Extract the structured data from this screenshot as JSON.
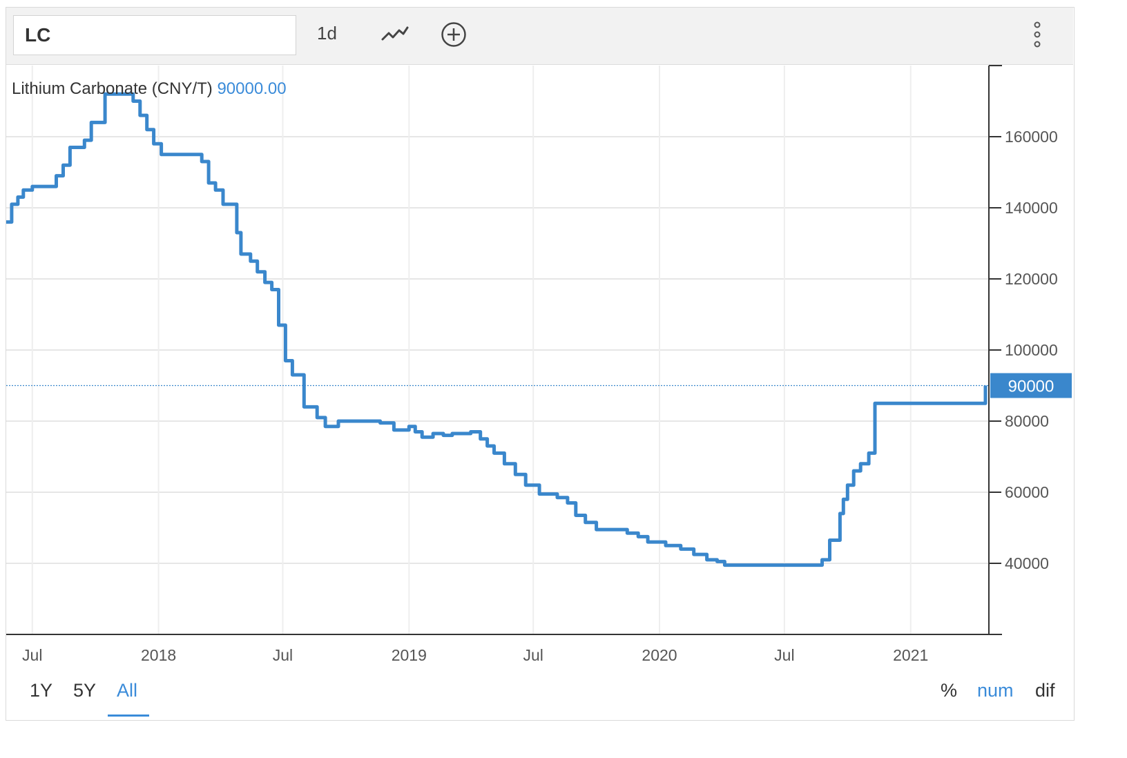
{
  "toolbar": {
    "symbol": "LC",
    "interval": "1d",
    "chart_type_icon": "line-chart-icon",
    "add_icon": "plus-circle-icon",
    "menu_icon": "vertical-dots-icon"
  },
  "legend": {
    "series_name": "Lithium Carbonate (CNY/T)",
    "last_value": "90000.00"
  },
  "price_tag": "90000",
  "range_buttons": [
    "1Y",
    "5Y",
    "All"
  ],
  "active_range": "All",
  "mode_buttons": [
    "%",
    "num",
    "dif"
  ],
  "active_mode": "num",
  "colors": {
    "line": "#3a87cc",
    "accent": "#3a8bd9",
    "grid": "#e6e6e6"
  },
  "chart_data": {
    "type": "line",
    "title": "",
    "xlabel": "",
    "ylabel": "",
    "y_ticks": [
      40000,
      60000,
      80000,
      100000,
      120000,
      140000,
      160000
    ],
    "ylim": [
      20000,
      180000
    ],
    "x_ticks": [
      {
        "date": "2017-07-01",
        "label": "Jul"
      },
      {
        "date": "2018-01-01",
        "label": "2018"
      },
      {
        "date": "2018-07-01",
        "label": "Jul"
      },
      {
        "date": "2019-01-01",
        "label": "2019"
      },
      {
        "date": "2019-07-01",
        "label": "Jul"
      },
      {
        "date": "2020-01-01",
        "label": "2020"
      },
      {
        "date": "2020-07-01",
        "label": "Jul"
      },
      {
        "date": "2021-01-01",
        "label": "2021"
      }
    ],
    "xlim": [
      "2017-05-24",
      "2021-04-25"
    ],
    "grid": true,
    "series": [
      {
        "name": "Lithium Carbonate (CNY/T)",
        "points": [
          [
            "2017-05-24",
            136000
          ],
          [
            "2017-06-01",
            141000
          ],
          [
            "2017-06-10",
            143000
          ],
          [
            "2017-06-18",
            145000
          ],
          [
            "2017-07-01",
            146000
          ],
          [
            "2017-08-05",
            149000
          ],
          [
            "2017-08-15",
            152000
          ],
          [
            "2017-08-25",
            157000
          ],
          [
            "2017-09-15",
            159000
          ],
          [
            "2017-09-25",
            164000
          ],
          [
            "2017-10-15",
            172000
          ],
          [
            "2017-11-25",
            170000
          ],
          [
            "2017-12-05",
            166000
          ],
          [
            "2017-12-15",
            162000
          ],
          [
            "2017-12-25",
            158000
          ],
          [
            "2018-01-05",
            155000
          ],
          [
            "2018-03-05",
            153000
          ],
          [
            "2018-03-15",
            147000
          ],
          [
            "2018-03-25",
            145000
          ],
          [
            "2018-04-05",
            141000
          ],
          [
            "2018-04-25",
            133000
          ],
          [
            "2018-05-01",
            127000
          ],
          [
            "2018-05-15",
            125000
          ],
          [
            "2018-05-25",
            122000
          ],
          [
            "2018-06-05",
            119000
          ],
          [
            "2018-06-15",
            117000
          ],
          [
            "2018-06-25",
            107000
          ],
          [
            "2018-07-05",
            97000
          ],
          [
            "2018-07-15",
            93000
          ],
          [
            "2018-08-01",
            84000
          ],
          [
            "2018-08-20",
            81000
          ],
          [
            "2018-09-01",
            78500
          ],
          [
            "2018-09-20",
            80000
          ],
          [
            "2018-11-20",
            79500
          ],
          [
            "2018-12-10",
            77500
          ],
          [
            "2019-01-01",
            78500
          ],
          [
            "2019-01-10",
            77000
          ],
          [
            "2019-01-20",
            75500
          ],
          [
            "2019-02-05",
            76500
          ],
          [
            "2019-02-20",
            76000
          ],
          [
            "2019-03-05",
            76500
          ],
          [
            "2019-04-01",
            77000
          ],
          [
            "2019-04-15",
            75000
          ],
          [
            "2019-04-25",
            73000
          ],
          [
            "2019-05-05",
            71000
          ],
          [
            "2019-05-20",
            68000
          ],
          [
            "2019-06-05",
            65000
          ],
          [
            "2019-06-20",
            62000
          ],
          [
            "2019-07-10",
            59500
          ],
          [
            "2019-08-05",
            58500
          ],
          [
            "2019-08-20",
            57000
          ],
          [
            "2019-09-01",
            53500
          ],
          [
            "2019-09-15",
            51500
          ],
          [
            "2019-10-01",
            49500
          ],
          [
            "2019-11-15",
            48500
          ],
          [
            "2019-12-01",
            47500
          ],
          [
            "2019-12-15",
            46000
          ],
          [
            "2020-01-10",
            45000
          ],
          [
            "2020-02-01",
            44000
          ],
          [
            "2020-02-20",
            42500
          ],
          [
            "2020-03-10",
            41000
          ],
          [
            "2020-03-25",
            40500
          ],
          [
            "2020-04-05",
            39500
          ],
          [
            "2020-08-20",
            39500
          ],
          [
            "2020-08-25",
            41000
          ],
          [
            "2020-09-05",
            46500
          ],
          [
            "2020-09-20",
            54000
          ],
          [
            "2020-09-25",
            58000
          ],
          [
            "2020-10-01",
            62000
          ],
          [
            "2020-10-10",
            66000
          ],
          [
            "2020-10-20",
            68000
          ],
          [
            "2020-11-01",
            71000
          ],
          [
            "2020-11-10",
            85000
          ],
          [
            "2021-04-15",
            85000
          ],
          [
            "2021-04-20",
            90000
          ]
        ]
      }
    ],
    "last_value": 90000
  }
}
